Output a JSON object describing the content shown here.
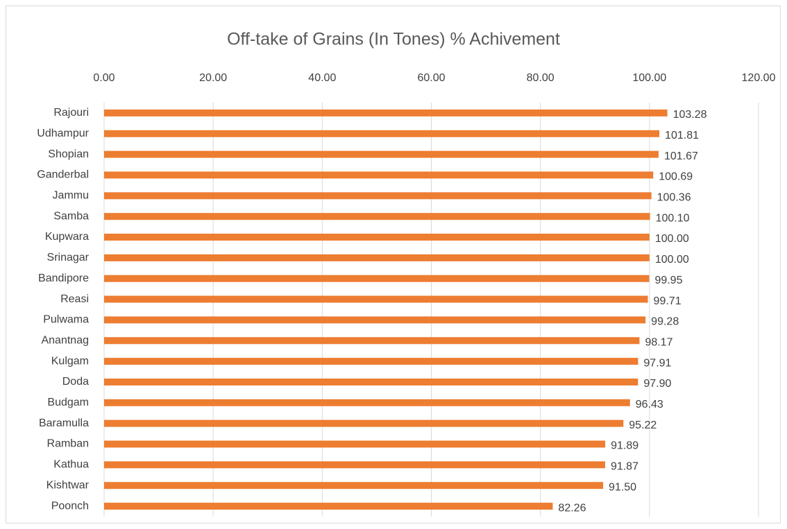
{
  "chart_data": {
    "type": "bar",
    "orientation": "horizontal",
    "title": "Off-take of Grains (In Tones) % Achivement",
    "categories": [
      "Rajouri",
      "Udhampur",
      "Shopian",
      "Ganderbal",
      "Jammu",
      "Samba",
      "Kupwara",
      "Srinagar",
      "Bandipore",
      "Reasi",
      "Pulwama",
      "Anantnag",
      "Kulgam",
      "Doda",
      "Budgam",
      "Baramulla",
      "Ramban",
      "Kathua",
      "Kishtwar",
      "Poonch"
    ],
    "values": [
      103.28,
      101.81,
      101.67,
      100.69,
      100.36,
      100.1,
      100,
      100,
      99.95,
      99.71,
      99.28,
      98.17,
      97.91,
      97.9,
      96.43,
      95.22,
      91.89,
      91.87,
      91.5,
      82.26
    ],
    "value_labels": [
      "103.28",
      "101.81",
      "101.67",
      "100.69",
      "100.36",
      "100.10",
      "100.00",
      "100.00",
      "99.95",
      "99.71",
      "99.28",
      "98.17",
      "97.91",
      "97.90",
      "96.43",
      "95.22",
      "91.89",
      "91.87",
      "91.50",
      "82.26"
    ],
    "color": "#ed7d31",
    "xlim": [
      0,
      120
    ],
    "xticks": [
      {
        "value": 0,
        "label": "0.00"
      },
      {
        "value": 20,
        "label": "20.00"
      },
      {
        "value": 40,
        "label": "40.00"
      },
      {
        "value": 60,
        "label": "60.00"
      },
      {
        "value": 80,
        "label": "80.00"
      },
      {
        "value": 100,
        "label": "100.00"
      },
      {
        "value": 120,
        "label": "120.00"
      }
    ],
    "grid": true
  }
}
